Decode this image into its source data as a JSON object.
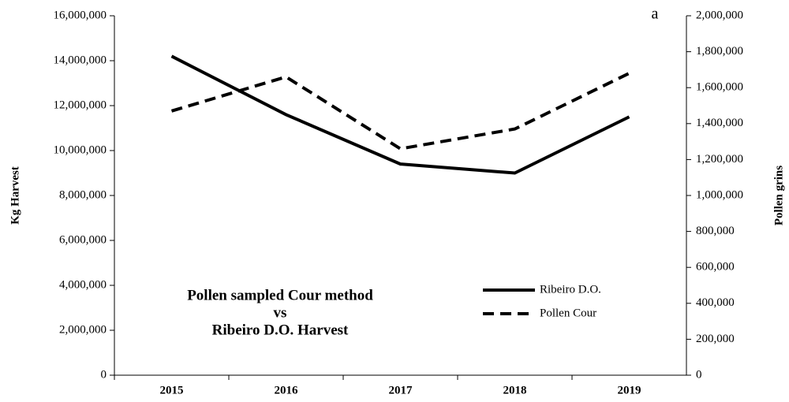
{
  "chart_data": {
    "type": "line",
    "categories": [
      "2015",
      "2016",
      "2017",
      "2018",
      "2019"
    ],
    "ylabel": "Kg Harvest",
    "y2label": "Pollen grins",
    "panel_label": "a",
    "annotation": [
      "Pollen sampled Cour method",
      "vs",
      "Ribeiro D.O. Harvest"
    ],
    "legend": "center-right",
    "ylim": [
      0,
      16000000
    ],
    "yticks": [
      0,
      {
        "value": 2000000,
        "label": "2,000,000"
      },
      {
        "value": 4000000,
        "label": "4,000,000"
      },
      {
        "value": 6000000,
        "label": "6,000,000"
      },
      {
        "value": 8000000,
        "label": "8,000,000"
      },
      {
        "value": 10000000,
        "label": "10,000,000"
      },
      {
        "value": 12000000,
        "label": "12,000,000"
      },
      {
        "value": 14000000,
        "label": "14,000,000"
      },
      {
        "value": 16000000,
        "label": "16,000,000"
      }
    ],
    "y2lim": [
      0,
      2000000
    ],
    "y2ticks": [
      0,
      {
        "value": 200000,
        "label": "200,000"
      },
      {
        "value": 400000,
        "label": "400,000"
      },
      {
        "value": 600000,
        "label": "600,000"
      },
      {
        "value": 800000,
        "label": "800,000"
      },
      {
        "value": 1000000,
        "label": "1,000,000"
      },
      {
        "value": 1200000,
        "label": "1,200,000"
      },
      {
        "value": 1400000,
        "label": "1,400,000"
      },
      {
        "value": 1600000,
        "label": "1,600,000"
      },
      {
        "value": 1800000,
        "label": "1,800,000"
      },
      {
        "value": 2000000,
        "label": "2,000,000"
      }
    ],
    "series": [
      {
        "name": "Ribeiro D.O.",
        "color": "#000000",
        "linestyle": "solid",
        "values": [
          14200000,
          11600000,
          9400000,
          9000000,
          11500000
        ]
      },
      {
        "name": "Pollen Cour",
        "color": "#000000",
        "linestyle": "dashed",
        "axis": "y2",
        "values": [
          1470000,
          1660000,
          1260000,
          1370000,
          1680000
        ]
      }
    ]
  }
}
